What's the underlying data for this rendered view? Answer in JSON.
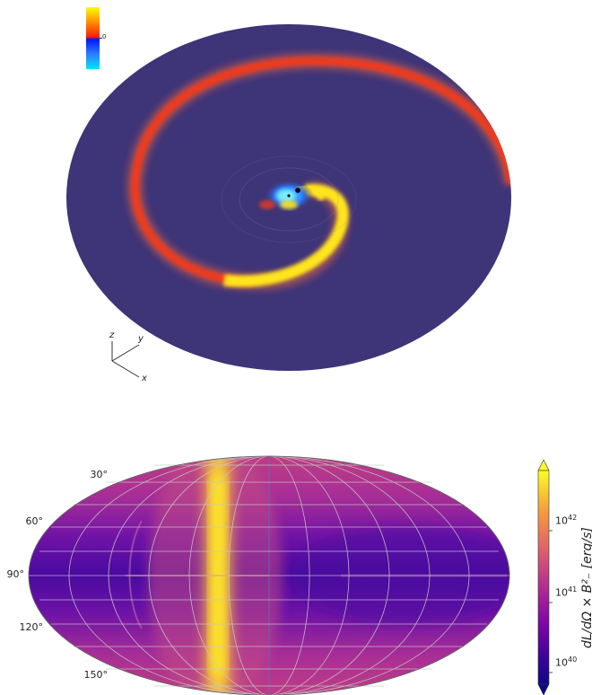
{
  "top_panel": {
    "colorbar": {
      "tick_label": "0",
      "colors": [
        "#ffff00",
        "#ff8a00",
        "#ff1e00",
        "#0018ff",
        "#2b7bff",
        "#00e5ff"
      ]
    },
    "axes_triad": {
      "z": "z",
      "y": "y",
      "x": "x"
    },
    "colors": {
      "background_disk": "#3e3478",
      "spiral_outer": "#ef3a1f",
      "spiral_inner": "#ffe51a",
      "core_blue": "#1b6cff"
    }
  },
  "bottom_panel": {
    "latitude_labels": [
      "30°",
      "60°",
      "90°",
      "120°",
      "150°"
    ],
    "colorbar": {
      "ticks": [
        {
          "base": "10",
          "exp": "42"
        },
        {
          "base": "10",
          "exp": "41"
        },
        {
          "base": "10",
          "exp": "40"
        }
      ],
      "label": "dL/dΩ × B²₋ [erg/s]",
      "colors": [
        "#fcfd28",
        "#f4a13a",
        "#e16667",
        "#b7358e",
        "#8408a4",
        "#44039d",
        "#0d0887"
      ]
    },
    "colors": {
      "map_low": "#5a11a3",
      "map_mid": "#b1318f",
      "map_high": "#fde82a",
      "grid": "#c8c8c8"
    }
  }
}
